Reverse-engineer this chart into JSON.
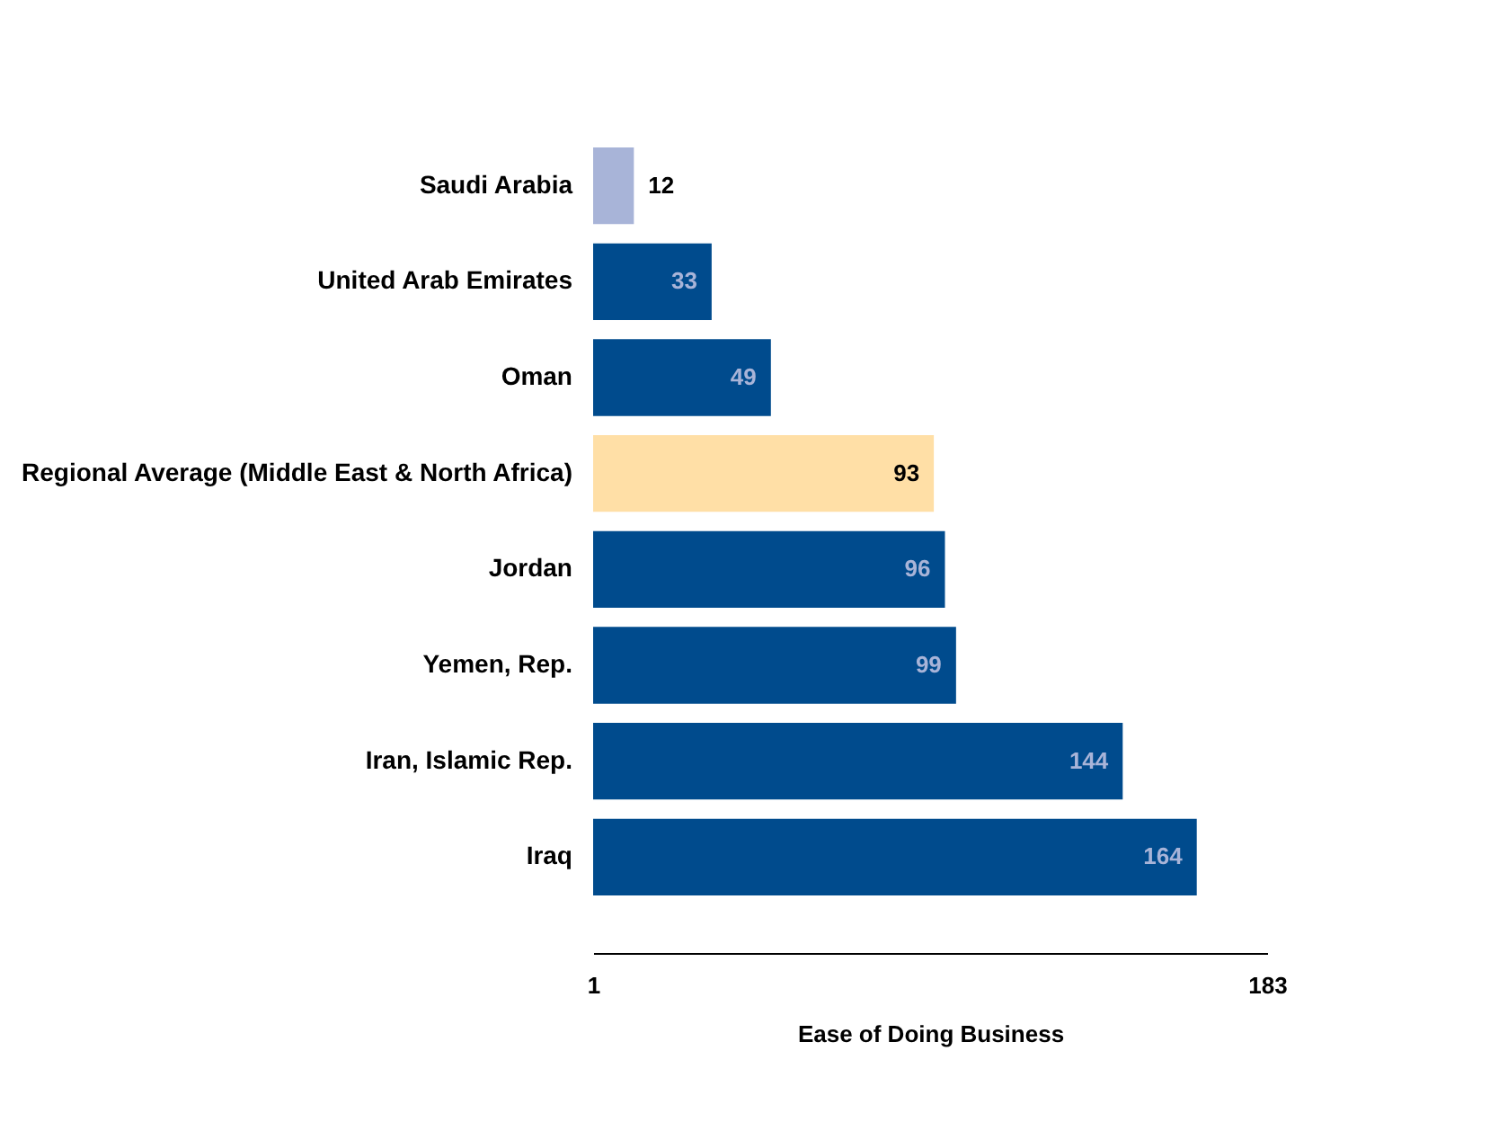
{
  "chart_data": {
    "type": "bar",
    "orientation": "horizontal",
    "xlabel": "Ease of Doing Business",
    "categories": [
      "Saudi Arabia",
      "United Arab Emirates",
      "Oman",
      "Regional Average (Middle East & North Africa)",
      "Jordan",
      "Yemen, Rep.",
      "Iran, Islamic Rep.",
      "Iraq"
    ],
    "values": [
      12,
      33,
      49,
      93,
      96,
      99,
      144,
      164
    ],
    "colors": [
      "#a8b4d8",
      "#004b8d",
      "#004b8d",
      "#ffdfa6",
      "#004b8d",
      "#004b8d",
      "#004b8d",
      "#004b8d"
    ],
    "xlim": [
      1,
      183
    ],
    "xticks": [
      1,
      183
    ],
    "data_labels": true,
    "grid": false,
    "legend": false
  }
}
